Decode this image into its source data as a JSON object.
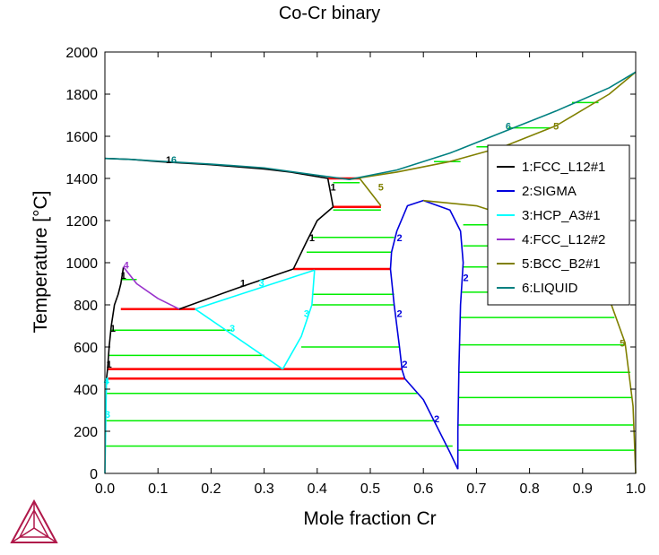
{
  "chart_data": {
    "type": "line",
    "title": "Co-Cr binary",
    "xlabel": "Mole fraction Cr",
    "ylabel": "Temperature [°C]",
    "xlim": [
      0,
      1
    ],
    "ylim": [
      0,
      2000
    ],
    "xticks": [
      "0.0",
      "0.1",
      "0.2",
      "0.3",
      "0.4",
      "0.5",
      "0.6",
      "0.7",
      "0.8",
      "0.9",
      "1.0"
    ],
    "yticks": [
      "0",
      "200",
      "400",
      "600",
      "800",
      "1000",
      "1200",
      "1400",
      "1600",
      "1800",
      "2000"
    ],
    "grid": false,
    "legend_position": "right",
    "series": [
      {
        "name": "1:FCC_L12#1",
        "color": "#000000",
        "segments": [
          [
            [
              0,
              1495
            ],
            [
              0.05,
              1490
            ],
            [
              0.1,
              1480
            ],
            [
              0.2,
              1465
            ],
            [
              0.3,
              1445
            ],
            [
              0.35,
              1430
            ],
            [
              0.42,
              1400
            ]
          ],
          [
            [
              0.42,
              1400
            ],
            [
              0.43,
              1265
            ]
          ],
          [
            [
              0.43,
              1265
            ],
            [
              0.4,
              1200
            ],
            [
              0.38,
              1100
            ],
            [
              0.355,
              970
            ]
          ],
          [
            [
              0.355,
              970
            ],
            [
              0.25,
              880
            ],
            [
              0.14,
              780
            ]
          ],
          [
            [
              0.035,
              980
            ],
            [
              0.03,
              900
            ],
            [
              0.025,
              850
            ],
            [
              0.018,
              800
            ],
            [
              0.012,
              700
            ],
            [
              0.008,
              600
            ],
            [
              0.005,
              495
            ]
          ],
          [
            [
              0.005,
              495
            ],
            [
              0.003,
              450
            ]
          ]
        ]
      },
      {
        "name": "2:SIGMA",
        "color": "#0000dd",
        "segments": [
          [
            [
              0.538,
              970
            ],
            [
              0.545,
              800
            ],
            [
              0.555,
              600
            ],
            [
              0.56,
              490
            ],
            [
              0.565,
              450
            ],
            [
              0.6,
              350
            ],
            [
              0.63,
              200
            ],
            [
              0.65,
              100
            ],
            [
              0.665,
              20
            ]
          ],
          [
            [
              0.665,
              20
            ],
            [
              0.665,
              200
            ],
            [
              0.667,
              500
            ],
            [
              0.67,
              800
            ],
            [
              0.675,
              1000
            ],
            [
              0.67,
              1150
            ],
            [
              0.65,
              1250
            ],
            [
              0.6,
              1295
            ],
            [
              0.57,
              1270
            ],
            [
              0.55,
              1150
            ],
            [
              0.54,
              1050
            ],
            [
              0.538,
              970
            ]
          ]
        ]
      },
      {
        "name": "3:HCP_A3#1",
        "color": "#00ffff",
        "segments": [
          [
            [
              0.17,
              780
            ],
            [
              0.335,
              495
            ]
          ],
          [
            [
              0.17,
              780
            ],
            [
              0.395,
              965
            ]
          ],
          [
            [
              0.395,
              965
            ],
            [
              0.39,
              800
            ],
            [
              0.37,
              650
            ],
            [
              0.335,
              495
            ]
          ],
          [
            [
              0.003,
              450
            ],
            [
              0.002,
              300
            ],
            [
              0.001,
              150
            ],
            [
              0,
              0
            ]
          ]
        ]
      },
      {
        "name": "4:FCC_L12#2",
        "color": "#9932cc",
        "segments": [
          [
            [
              0.035,
              980
            ],
            [
              0.06,
              900
            ],
            [
              0.1,
              830
            ],
            [
              0.14,
              780
            ]
          ]
        ]
      },
      {
        "name": "5:BCC_B2#1",
        "color": "#808000",
        "segments": [
          [
            [
              0.48,
              1400
            ],
            [
              0.52,
              1270
            ]
          ],
          [
            [
              0.46,
              1395
            ],
            [
              0.55,
              1430
            ],
            [
              0.65,
              1480
            ],
            [
              0.75,
              1550
            ],
            [
              0.85,
              1650
            ],
            [
              0.95,
              1800
            ],
            [
              1.0,
              1905
            ]
          ],
          [
            [
              0.6,
              1295
            ],
            [
              0.7,
              1270
            ],
            [
              0.8,
              1190
            ],
            [
              0.9,
              1010
            ],
            [
              0.95,
              830
            ],
            [
              0.98,
              620
            ],
            [
              0.995,
              320
            ],
            [
              1.0,
              0
            ]
          ]
        ]
      },
      {
        "name": "6:LIQUID",
        "color": "#008080",
        "segments": [
          [
            [
              0,
              1495
            ],
            [
              0.05,
              1490
            ],
            [
              0.1,
              1482
            ],
            [
              0.2,
              1468
            ],
            [
              0.3,
              1450
            ],
            [
              0.4,
              1415
            ],
            [
              0.46,
              1395
            ],
            [
              0.55,
              1440
            ],
            [
              0.65,
              1520
            ],
            [
              0.75,
              1620
            ],
            [
              0.85,
              1720
            ],
            [
              0.95,
              1830
            ],
            [
              1.0,
              1905
            ]
          ]
        ]
      }
    ],
    "invariant_lines": {
      "color": "#ff0000",
      "lines": [
        {
          "T": 1400,
          "x": [
            0.42,
            0.48
          ]
        },
        {
          "T": 1265,
          "x": [
            0.43,
            0.52
          ]
        },
        {
          "T": 970,
          "x": [
            0.355,
            0.538
          ]
        },
        {
          "T": 780,
          "x": [
            0.03,
            0.17
          ]
        },
        {
          "T": 495,
          "x": [
            0.005,
            0.56
          ]
        },
        {
          "T": 450,
          "x": [
            0.003,
            0.565
          ]
        }
      ]
    },
    "tie_lines": {
      "color": "#00ee00",
      "lines": [
        {
          "T": 1380,
          "x": [
            0.43,
            0.48
          ]
        },
        {
          "T": 1250,
          "x": [
            0.43,
            0.52
          ]
        },
        {
          "T": 1120,
          "x": [
            0.39,
            0.545
          ]
        },
        {
          "T": 1050,
          "x": [
            0.38,
            0.54
          ]
        },
        {
          "T": 920,
          "x": [
            0.03,
            0.06
          ]
        },
        {
          "T": 850,
          "x": [
            0.39,
            0.545
          ]
        },
        {
          "T": 800,
          "x": [
            0.39,
            0.545
          ]
        },
        {
          "T": 680,
          "x": [
            0.01,
            0.24
          ]
        },
        {
          "T": 560,
          "x": [
            0.006,
            0.3
          ]
        },
        {
          "T": 600,
          "x": [
            0.37,
            0.555
          ]
        },
        {
          "T": 380,
          "x": [
            0.003,
            0.59
          ]
        },
        {
          "T": 250,
          "x": [
            0.002,
            0.625
          ]
        },
        {
          "T": 130,
          "x": [
            0.001,
            0.655
          ]
        },
        {
          "T": 1180,
          "x": [
            0.675,
            0.8
          ]
        },
        {
          "T": 1080,
          "x": [
            0.675,
            0.87
          ]
        },
        {
          "T": 980,
          "x": [
            0.675,
            0.91
          ]
        },
        {
          "T": 860,
          "x": [
            0.673,
            0.94
          ]
        },
        {
          "T": 740,
          "x": [
            0.67,
            0.96
          ]
        },
        {
          "T": 610,
          "x": [
            0.668,
            0.98
          ]
        },
        {
          "T": 480,
          "x": [
            0.667,
            0.99
          ]
        },
        {
          "T": 360,
          "x": [
            0.666,
            0.993
          ]
        },
        {
          "T": 230,
          "x": [
            0.666,
            0.997
          ]
        },
        {
          "T": 110,
          "x": [
            0.665,
            1.0
          ]
        },
        {
          "T": 1480,
          "x": [
            0.62,
            0.67
          ]
        },
        {
          "T": 1550,
          "x": [
            0.7,
            0.76
          ]
        },
        {
          "T": 1640,
          "x": [
            0.76,
            0.84
          ]
        },
        {
          "T": 1760,
          "x": [
            0.88,
            0.93
          ]
        }
      ]
    },
    "annotations": [
      {
        "text": "1",
        "x": 0.12,
        "y": 1490,
        "color": "#000000"
      },
      {
        "text": "6",
        "x": 0.13,
        "y": 1490,
        "color": "#008080"
      },
      {
        "text": "6",
        "x": 0.76,
        "y": 1650,
        "color": "#008080"
      },
      {
        "text": "5",
        "x": 0.85,
        "y": 1650,
        "color": "#808000"
      },
      {
        "text": "1",
        "x": 0.43,
        "y": 1360,
        "color": "#000000"
      },
      {
        "text": "5",
        "x": 0.52,
        "y": 1360,
        "color": "#808000"
      },
      {
        "text": "1",
        "x": 0.39,
        "y": 1120,
        "color": "#000000"
      },
      {
        "text": "2",
        "x": 0.555,
        "y": 1120,
        "color": "#0000dd"
      },
      {
        "text": "2",
        "x": 0.68,
        "y": 930,
        "color": "#0000dd"
      },
      {
        "text": "4",
        "x": 0.04,
        "y": 990,
        "color": "#9932cc"
      },
      {
        "text": "1",
        "x": 0.035,
        "y": 940,
        "color": "#000000"
      },
      {
        "text": "1",
        "x": 0.26,
        "y": 905,
        "color": "#000000"
      },
      {
        "text": "3",
        "x": 0.295,
        "y": 905,
        "color": "#00ffff"
      },
      {
        "text": "3",
        "x": 0.38,
        "y": 760,
        "color": "#00ffff"
      },
      {
        "text": "2",
        "x": 0.555,
        "y": 760,
        "color": "#0000dd"
      },
      {
        "text": "3",
        "x": 0.24,
        "y": 690,
        "color": "#00ffff"
      },
      {
        "text": "1",
        "x": 0.015,
        "y": 690,
        "color": "#000000"
      },
      {
        "text": "1",
        "x": 0.008,
        "y": 520,
        "color": "#000000"
      },
      {
        "text": "2",
        "x": 0.565,
        "y": 520,
        "color": "#0000dd"
      },
      {
        "text": "4",
        "x": 0.003,
        "y": 440,
        "color": "#00ffff"
      },
      {
        "text": "3",
        "x": 0.005,
        "y": 280,
        "color": "#00ffff"
      },
      {
        "text": "2",
        "x": 0.625,
        "y": 260,
        "color": "#0000dd"
      },
      {
        "text": "5",
        "x": 0.975,
        "y": 620,
        "color": "#808000"
      }
    ]
  },
  "logo": {
    "name": "thermo-calc-logo-icon",
    "color": "#b0184a"
  }
}
